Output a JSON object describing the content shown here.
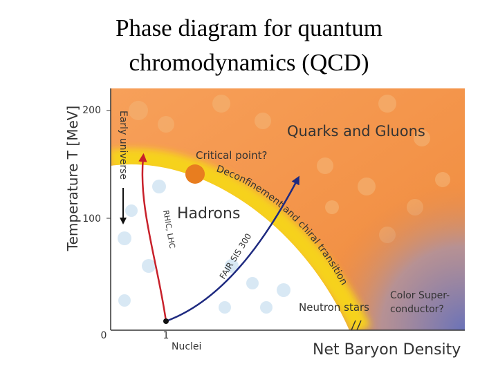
{
  "title": {
    "lines": [
      "Phase diagram for quantum",
      "chromodynamics (QCD)"
    ]
  },
  "diagram": {
    "y_axis_label": "Temperature T [MeV]",
    "x_axis_label": "Net Baryon Density",
    "y_ticks": [
      "200",
      "100",
      "0"
    ],
    "x_ticks": [
      "1"
    ],
    "labels": {
      "quarks_gluons": "Quarks and Gluons",
      "critical_point": "Critical point?",
      "transition": "Deconfinement and chiral transition",
      "hadrons": "Hadrons",
      "early_universe": "Early universe",
      "rhic_lhc": "RHIC, LHC",
      "fair": "FAIR SIS 300",
      "neutron_stars": "Neutron stars",
      "color_superconductor": [
        "Color Super-",
        "conductor?"
      ],
      "nuclei": "Nuclei"
    }
  }
}
